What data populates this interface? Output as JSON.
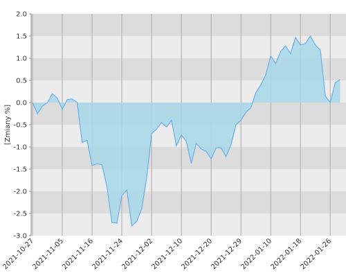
{
  "chart_data": {
    "type": "area",
    "y_label": "[Zmiany %]",
    "categories": [
      "2021-10-27",
      null,
      null,
      null,
      null,
      null,
      "2021-11-05",
      null,
      null,
      null,
      null,
      null,
      "2021-11-16",
      null,
      null,
      null,
      null,
      null,
      "2021-11-24",
      null,
      null,
      null,
      null,
      null,
      "2021-12-02",
      null,
      null,
      null,
      null,
      null,
      "2021-12-10",
      null,
      null,
      null,
      null,
      null,
      "2021-12-20",
      null,
      null,
      null,
      null,
      null,
      "2021-12-29",
      null,
      null,
      null,
      null,
      null,
      "2022-01-10",
      null,
      null,
      null,
      null,
      null,
      "2022-01-18",
      null,
      null,
      null,
      null,
      null,
      "2022-01-26",
      null,
      null
    ],
    "values": [
      0.0,
      -0.25,
      -0.08,
      0.0,
      0.2,
      0.1,
      -0.15,
      0.07,
      0.08,
      0.0,
      -0.9,
      -0.85,
      -1.42,
      -1.38,
      -1.4,
      -1.9,
      -2.7,
      -2.72,
      -2.1,
      -1.97,
      -2.78,
      -2.68,
      -2.4,
      -1.7,
      -0.7,
      -0.6,
      -0.45,
      -0.55,
      -0.4,
      -0.97,
      -0.73,
      -0.88,
      -1.37,
      -0.92,
      -1.05,
      -1.1,
      -1.27,
      -1.02,
      -1.02,
      -1.22,
      -0.95,
      -0.5,
      -0.4,
      -0.22,
      -0.12,
      0.22,
      0.4,
      0.62,
      1.05,
      0.88,
      1.15,
      1.28,
      1.1,
      1.47,
      1.3,
      1.33,
      1.5,
      1.3,
      1.18,
      0.15,
      0.0,
      0.45,
      0.52
    ],
    "color": "#6aaee8",
    "fill_color": "#a8d8ea",
    "ylim": [
      -3,
      2
    ],
    "yticks": [
      {
        "value": -3,
        "label": "-3.0"
      },
      -2.5,
      {
        "value": -2,
        "label": "-2.0"
      },
      -1.5,
      {
        "value": -1,
        "label": "-1.0"
      },
      -0.5,
      {
        "value": 0,
        "label": "0.0"
      },
      0.5,
      {
        "value": 1,
        "label": "1.0"
      },
      1.5,
      {
        "value": 2,
        "label": "2.0"
      }
    ],
    "band_colors": [
      "#dcdcdc",
      "#ececec"
    ],
    "grid": true
  }
}
